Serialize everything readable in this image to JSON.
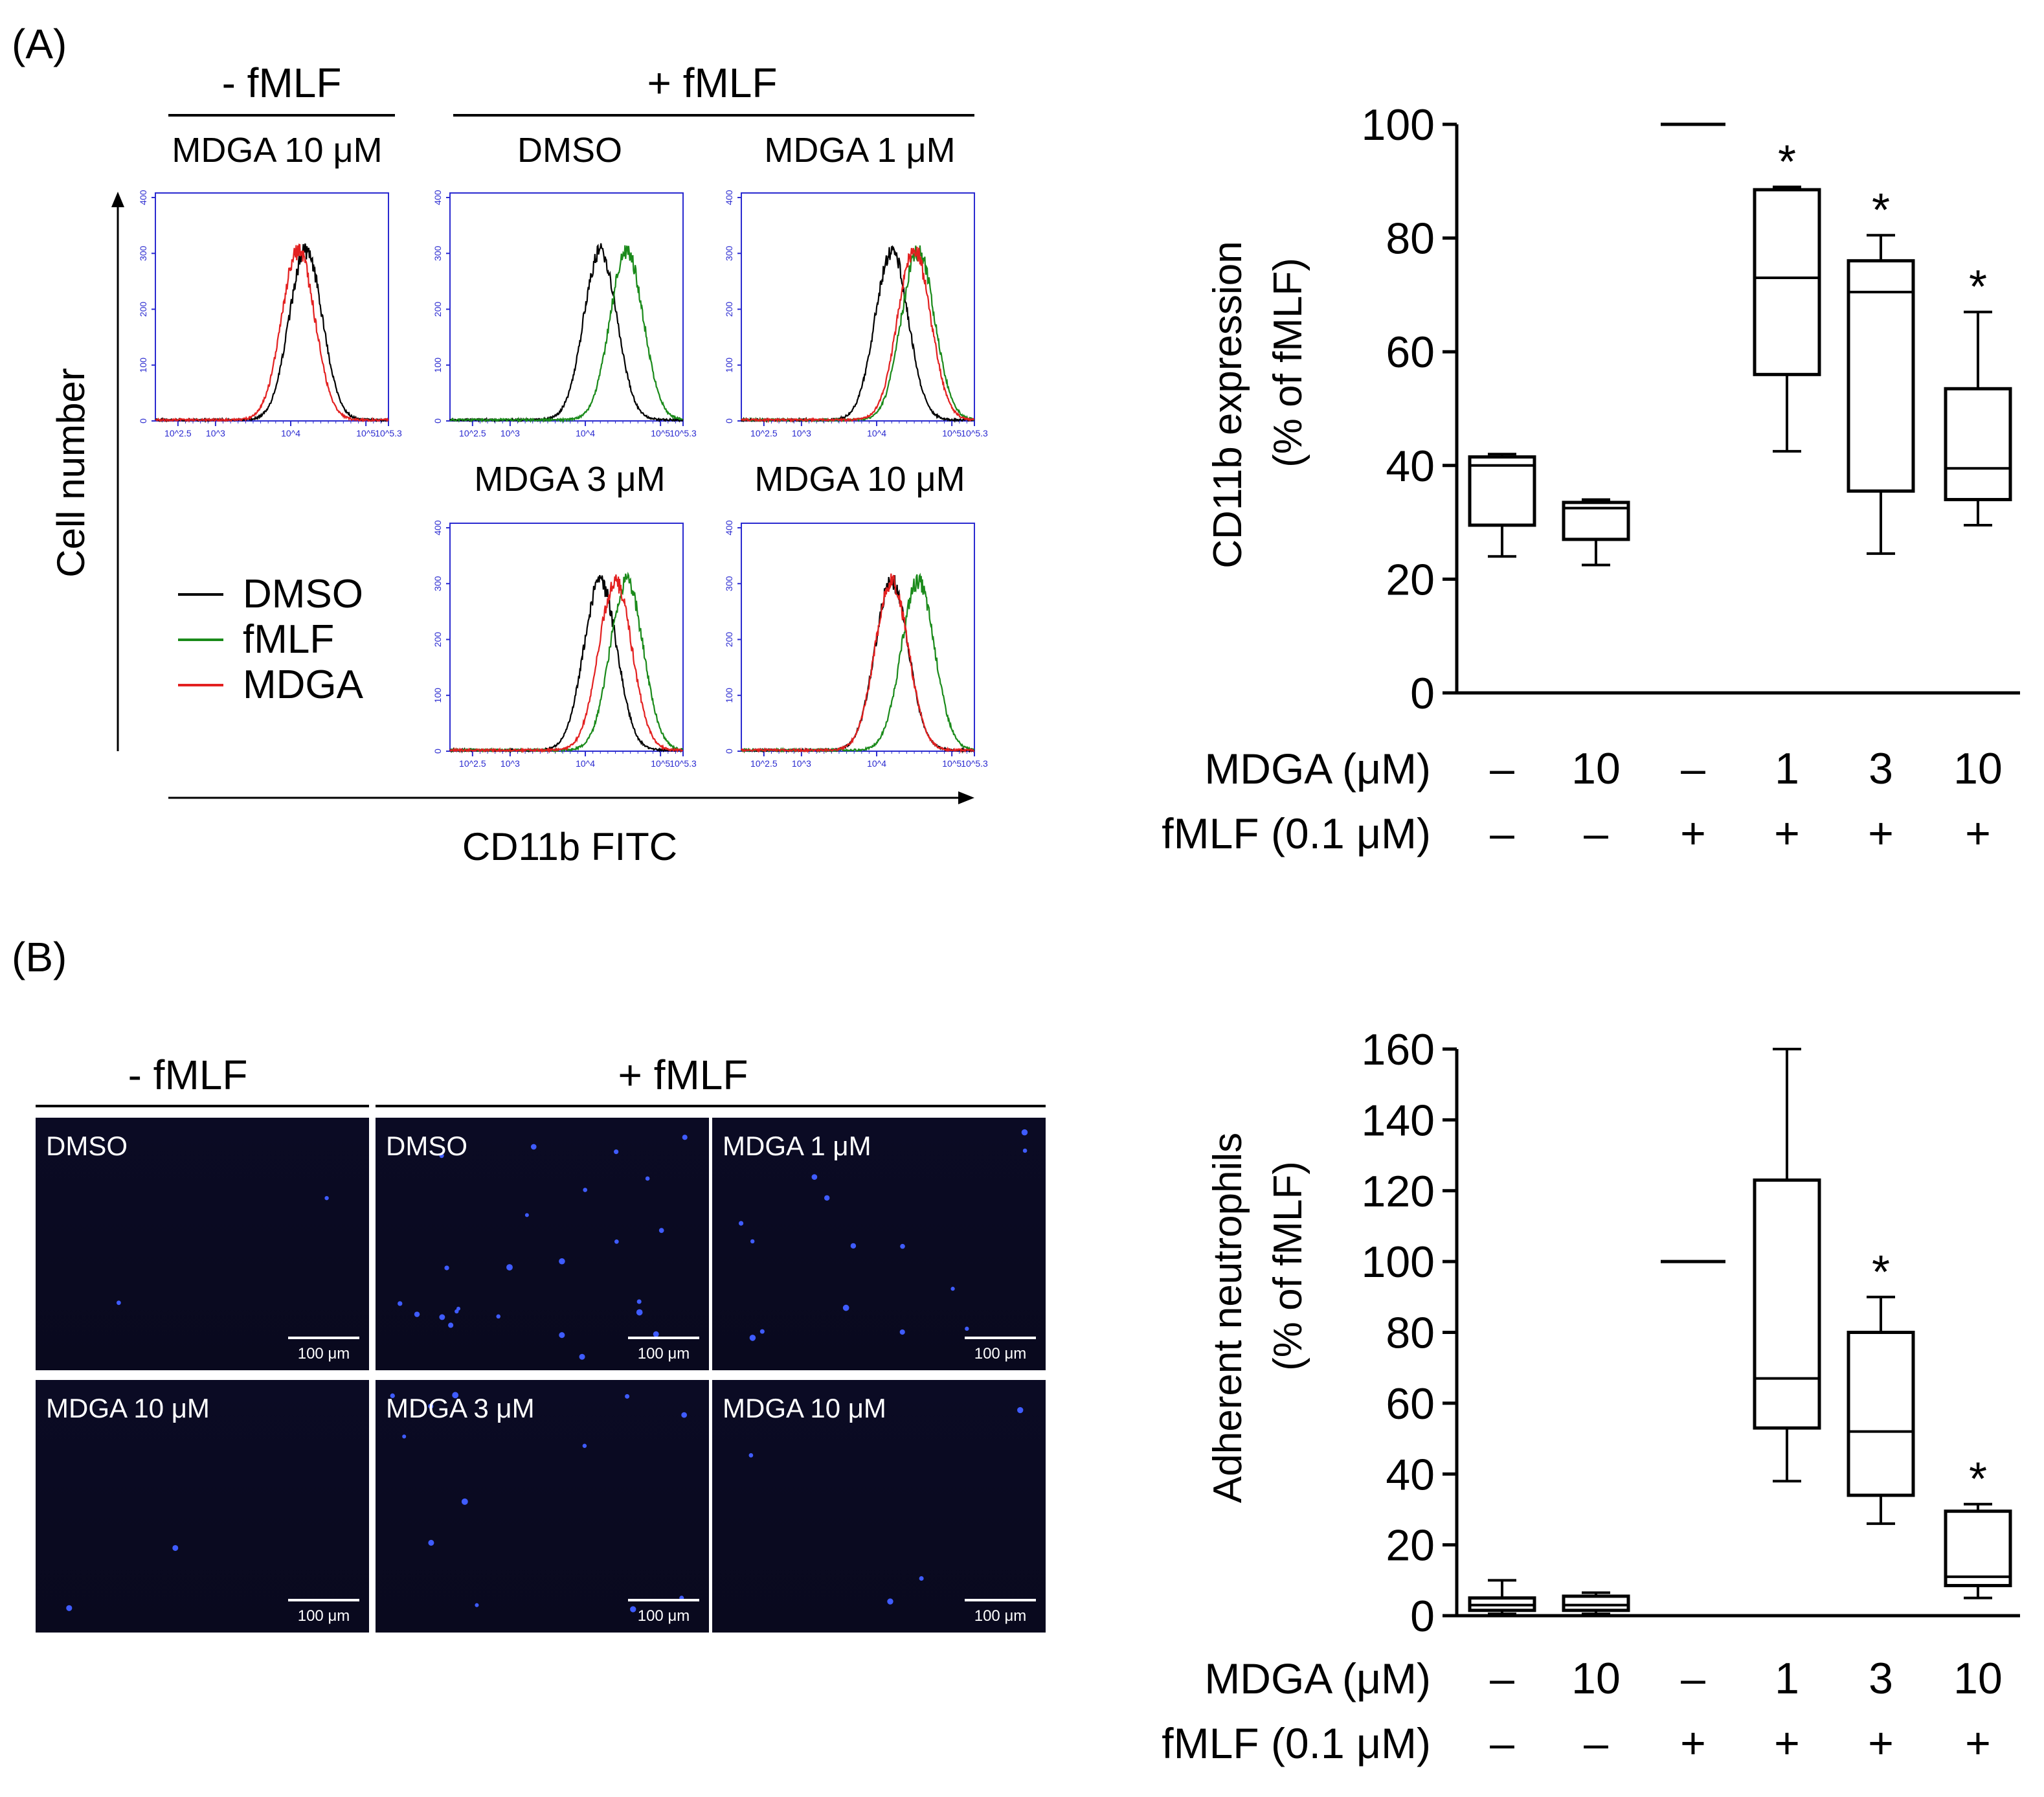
{
  "panel_a": {
    "label": "(A)",
    "headers": {
      "minus_fmlf": "- fMLF",
      "plus_fmlf": "+ fMLF"
    },
    "histograms": [
      {
        "title": "MDGA 10 μM",
        "peaks": {
          "black": 4.2,
          "red": 4.1
        }
      },
      {
        "title": "DMSO",
        "peaks": {
          "black": 4.2,
          "green": 4.55
        }
      },
      {
        "title": "MDGA 1 μM",
        "peaks": {
          "black": 4.2,
          "green": 4.55,
          "red": 4.5
        }
      },
      {
        "title": "MDGA 3 μM",
        "peaks": {
          "black": 4.2,
          "green": 4.55,
          "red": 4.4
        }
      },
      {
        "title": "MDGA 10 μM",
        "peaks": {
          "black": 4.2,
          "green": 4.55,
          "red": 4.2
        }
      }
    ],
    "hist_y_ticks": [
      "0",
      "100",
      "200",
      "300",
      "400"
    ],
    "hist_x_ticks": [
      "10^2.5",
      "10^3",
      "10^4",
      "10^5",
      "10^5.3"
    ],
    "ylabel": "Cell number",
    "xlabel": "CD11b FITC",
    "legend": [
      {
        "label": "DMSO",
        "color": "#000000"
      },
      {
        "label": "fMLF",
        "color": "#1a8a1a"
      },
      {
        "label": "MDGA",
        "color": "#e32020"
      }
    ]
  },
  "panel_b": {
    "label": "(B)",
    "headers": {
      "minus_fmlf": "- fMLF",
      "plus_fmlf": "+ fMLF"
    },
    "images": [
      {
        "label": "DMSO",
        "scale": "100 μm"
      },
      {
        "label": "DMSO",
        "scale": "100 μm"
      },
      {
        "label": "MDGA 1 μM",
        "scale": "100 μm"
      },
      {
        "label": "MDGA 10 μM",
        "scale": "100 μm"
      },
      {
        "label": "MDGA 3 μM",
        "scale": "100 μm"
      },
      {
        "label": "MDGA 10 μM",
        "scale": "100 μm"
      }
    ]
  },
  "conditions": {
    "mdga_label": "MDGA (μM)",
    "fmlf_label": "fMLF (0.1 μM)",
    "mdga": [
      "–",
      "10",
      "–",
      "1",
      "3",
      "10"
    ],
    "fmlf": [
      "–",
      "–",
      "+",
      "+",
      "+",
      "+"
    ]
  },
  "chart_data": [
    {
      "type": "box",
      "panel": "A",
      "ylabel": [
        "CD11b expression",
        "(% of fMLF)"
      ],
      "ylim": [
        0,
        100
      ],
      "yticks": [
        0,
        20,
        40,
        60,
        80,
        100
      ],
      "boxes": [
        {
          "min": 24,
          "q1": 29.5,
          "median": 40,
          "q3": 41.5,
          "max": 42,
          "sig": ""
        },
        {
          "min": 22.5,
          "q1": 27,
          "median": 32.5,
          "q3": 33.5,
          "max": 34,
          "sig": ""
        },
        {
          "value": 100,
          "line_only": true,
          "sig": ""
        },
        {
          "min": 42.5,
          "q1": 56,
          "median": 73,
          "q3": 88.5,
          "max": 89,
          "sig": "*"
        },
        {
          "min": 24.5,
          "q1": 35.5,
          "median": 70.5,
          "q3": 76,
          "max": 80.5,
          "sig": "*"
        },
        {
          "min": 29.5,
          "q1": 34,
          "median": 39.5,
          "q3": 53.5,
          "max": 67,
          "sig": "*"
        }
      ]
    },
    {
      "type": "box",
      "panel": "B",
      "ylabel": [
        "Adherent  neutrophils",
        "(% of fMLF)"
      ],
      "ylim": [
        0,
        160
      ],
      "yticks": [
        0,
        20,
        40,
        60,
        80,
        100,
        120,
        140,
        160
      ],
      "boxes": [
        {
          "min": 0.5,
          "q1": 1.5,
          "median": 3,
          "q3": 5,
          "max": 10,
          "sig": ""
        },
        {
          "min": 0.5,
          "q1": 1.5,
          "median": 3,
          "q3": 5.5,
          "max": 6.5,
          "sig": ""
        },
        {
          "value": 100,
          "line_only": true,
          "sig": ""
        },
        {
          "min": 38,
          "q1": 53,
          "median": 67,
          "q3": 123,
          "max": 160,
          "sig": ""
        },
        {
          "min": 26,
          "q1": 34,
          "median": 52,
          "q3": 80,
          "max": 90,
          "sig": "*"
        },
        {
          "min": 5,
          "q1": 8.5,
          "median": 11,
          "q3": 29.5,
          "max": 31.5,
          "sig": "*"
        }
      ]
    }
  ]
}
